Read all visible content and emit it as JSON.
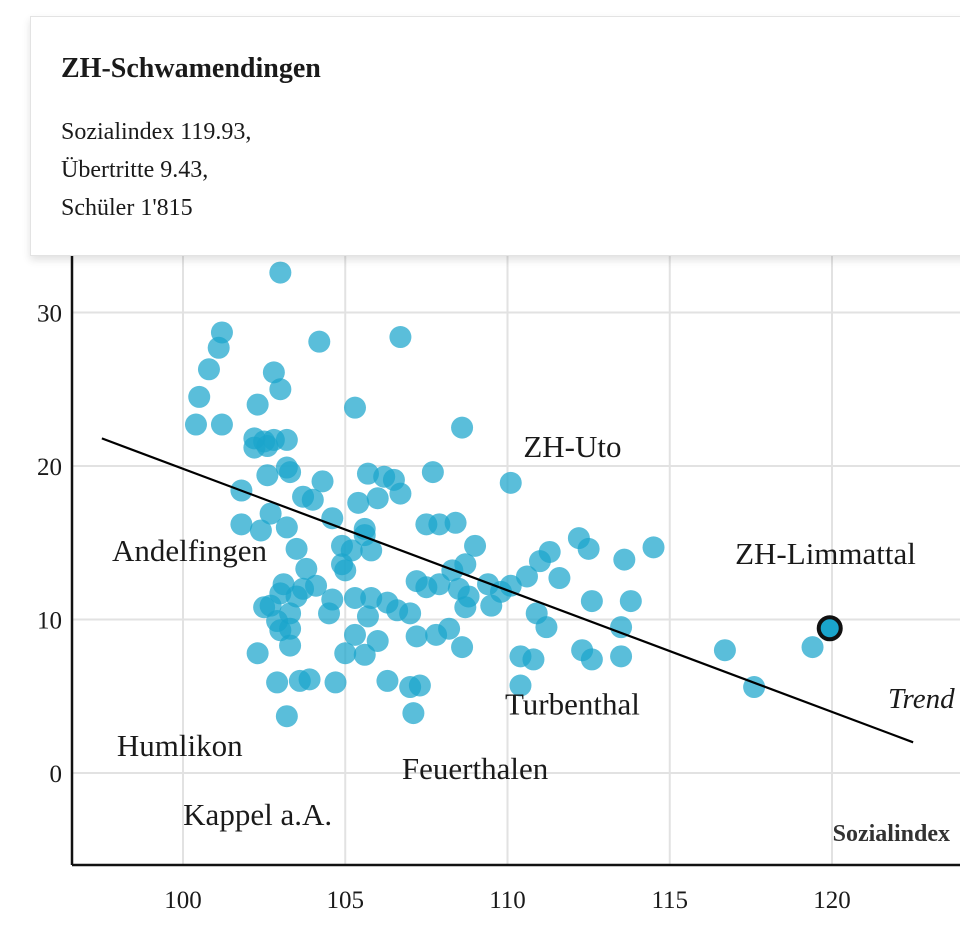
{
  "tooltip": {
    "title": "ZH-Schwamendingen",
    "line1": "Sozialindex 119.93,",
    "line2": "Übertritte 9.43,",
    "line3": "Schüler 1'815"
  },
  "colors": {
    "point": "#1aa5cc",
    "highlight_stroke": "#111111",
    "trend": "#000000",
    "grid": "#e2e2e2"
  },
  "chart_data": {
    "type": "scatter",
    "xlabel": "Sozialindex",
    "ylabel": "",
    "xlim": [
      97.5,
      124
    ],
    "ylim": [
      -6,
      33
    ],
    "x_ticks": [
      100,
      105,
      110,
      115,
      120
    ],
    "y_ticks": [
      0,
      10,
      20,
      30
    ],
    "grid": true,
    "trend": {
      "label": "Trend",
      "from": [
        97.5,
        21.8
      ],
      "to": [
        122.5,
        2.0
      ]
    },
    "highlight": {
      "name": "ZH-Schwamendingen",
      "x": 119.93,
      "y": 9.43
    },
    "annotations": [
      {
        "text": "ZH-Uto",
        "x": 112,
        "y": 20.6
      },
      {
        "text": "ZH-Limmattal",
        "x": 119.8,
        "y": 13.6
      },
      {
        "text": "Andelfingen",
        "x": 100.2,
        "y": 13.8
      },
      {
        "text": "Turbenthal",
        "x": 112,
        "y": 3.8
      },
      {
        "text": "Humlikon",
        "x": 99.9,
        "y": 1.1
      },
      {
        "text": "Feuerthalen",
        "x": 109,
        "y": -0.4
      },
      {
        "text": "Kappel a.A.",
        "x": 102.3,
        "y": -3.4
      }
    ],
    "points": [
      [
        103,
        32.6
      ],
      [
        101.2,
        28.7
      ],
      [
        101.1,
        27.7
      ],
      [
        104.2,
        28.1
      ],
      [
        106.7,
        28.4
      ],
      [
        100.8,
        26.3
      ],
      [
        102.8,
        26.1
      ],
      [
        103,
        25
      ],
      [
        100.5,
        24.5
      ],
      [
        102.3,
        24
      ],
      [
        105.3,
        23.8
      ],
      [
        100.4,
        22.7
      ],
      [
        101.2,
        22.7
      ],
      [
        108.6,
        22.5
      ],
      [
        102.2,
        21.8
      ],
      [
        102.5,
        21.6
      ],
      [
        102.8,
        21.7
      ],
      [
        103.2,
        21.7
      ],
      [
        102.2,
        21.2
      ],
      [
        102.6,
        21.3
      ],
      [
        103.2,
        19.9
      ],
      [
        103.3,
        19.6
      ],
      [
        102.6,
        19.4
      ],
      [
        104.3,
        19
      ],
      [
        105.7,
        19.5
      ],
      [
        106.2,
        19.3
      ],
      [
        106.5,
        19.1
      ],
      [
        107.7,
        19.6
      ],
      [
        110.1,
        18.9
      ],
      [
        101.8,
        18.4
      ],
      [
        103.7,
        18
      ],
      [
        104,
        17.8
      ],
      [
        105.4,
        17.6
      ],
      [
        106,
        17.9
      ],
      [
        106.7,
        18.2
      ],
      [
        102.7,
        16.9
      ],
      [
        104.6,
        16.6
      ],
      [
        101.8,
        16.2
      ],
      [
        102.4,
        15.8
      ],
      [
        103.2,
        16
      ],
      [
        105.6,
        15.9
      ],
      [
        107.5,
        16.2
      ],
      [
        107.9,
        16.2
      ],
      [
        108.4,
        16.3
      ],
      [
        103.5,
        14.6
      ],
      [
        104.9,
        14.8
      ],
      [
        105.6,
        15.5
      ],
      [
        105.2,
        14.5
      ],
      [
        105.8,
        14.5
      ],
      [
        109,
        14.8
      ],
      [
        111.3,
        14.4
      ],
      [
        112.2,
        15.3
      ],
      [
        112.5,
        14.6
      ],
      [
        114.5,
        14.7
      ],
      [
        103.8,
        13.3
      ],
      [
        104.9,
        13.6
      ],
      [
        105,
        13.2
      ],
      [
        107.2,
        12.5
      ],
      [
        108.3,
        13.2
      ],
      [
        108.7,
        13.6
      ],
      [
        109.4,
        12.3
      ],
      [
        109.8,
        11.8
      ],
      [
        110.6,
        12.8
      ],
      [
        111,
        13.8
      ],
      [
        111.6,
        12.7
      ],
      [
        113.6,
        13.9
      ],
      [
        103.1,
        12.3
      ],
      [
        103.7,
        12
      ],
      [
        104.1,
        12.2
      ],
      [
        107.5,
        12.1
      ],
      [
        107.9,
        12.3
      ],
      [
        108.5,
        12
      ],
      [
        108.8,
        11.5
      ],
      [
        110.1,
        12.2
      ],
      [
        103,
        11.7
      ],
      [
        103.5,
        11.5
      ],
      [
        104.6,
        11.3
      ],
      [
        105.3,
        11.4
      ],
      [
        105.8,
        11.4
      ],
      [
        106.3,
        11.1
      ],
      [
        108.7,
        10.8
      ],
      [
        109.5,
        10.9
      ],
      [
        112.6,
        11.2
      ],
      [
        113.8,
        11.2
      ],
      [
        102.5,
        10.8
      ],
      [
        102.7,
        10.9
      ],
      [
        103.3,
        10.4
      ],
      [
        104.5,
        10.4
      ],
      [
        105.7,
        10.2
      ],
      [
        106.6,
        10.6
      ],
      [
        107,
        10.4
      ],
      [
        110.9,
        10.4
      ],
      [
        102.9,
        9.9
      ],
      [
        103,
        9.3
      ],
      [
        103.3,
        9.4
      ],
      [
        105.3,
        9
      ],
      [
        106,
        8.6
      ],
      [
        107.2,
        8.9
      ],
      [
        107.8,
        9
      ],
      [
        108.2,
        9.4
      ],
      [
        111.2,
        9.5
      ],
      [
        113.5,
        9.5
      ],
      [
        102.3,
        7.8
      ],
      [
        103.3,
        8.3
      ],
      [
        105,
        7.8
      ],
      [
        105.6,
        7.7
      ],
      [
        108.6,
        8.2
      ],
      [
        110.4,
        7.6
      ],
      [
        110.8,
        7.4
      ],
      [
        112.3,
        8
      ],
      [
        112.6,
        7.4
      ],
      [
        113.5,
        7.6
      ],
      [
        116.7,
        8
      ],
      [
        119.4,
        8.2
      ],
      [
        102.9,
        5.9
      ],
      [
        103.6,
        6
      ],
      [
        103.9,
        6.1
      ],
      [
        104.7,
        5.9
      ],
      [
        106.3,
        6
      ],
      [
        107,
        5.6
      ],
      [
        107.3,
        5.7
      ],
      [
        110.4,
        5.7
      ],
      [
        117.6,
        5.6
      ],
      [
        103.2,
        3.7
      ],
      [
        107.1,
        3.9
      ]
    ]
  }
}
